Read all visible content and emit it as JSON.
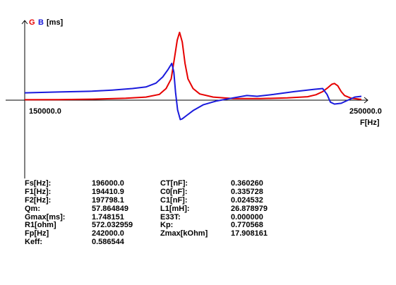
{
  "legend": {
    "g": "G",
    "b": "B",
    "unit": "[ms]"
  },
  "colors": {
    "g": "#e60000",
    "b": "#1a1adc",
    "axis": "#000000"
  },
  "chart_data": {
    "type": "line",
    "xlabel": "F[Hz]",
    "ylabel": "G B [ms]",
    "xlim": [
      150000,
      250000
    ],
    "x_tick_labels": [
      "150000.0",
      "250000.0"
    ],
    "grid": false,
    "series": [
      {
        "name": "G",
        "color": "#e60000",
        "points": [
          [
            150000,
            0.01
          ],
          [
            160000,
            0.015
          ],
          [
            170000,
            0.025
          ],
          [
            180000,
            0.05
          ],
          [
            186000,
            0.08
          ],
          [
            190000,
            0.15
          ],
          [
            192000,
            0.3
          ],
          [
            193500,
            0.55
          ],
          [
            194500,
            1.1
          ],
          [
            195300,
            1.55
          ],
          [
            196000,
            1.748
          ],
          [
            196800,
            1.5
          ],
          [
            197600,
            0.95
          ],
          [
            198500,
            0.55
          ],
          [
            200000,
            0.3
          ],
          [
            202000,
            0.16
          ],
          [
            206000,
            0.08
          ],
          [
            212000,
            0.04
          ],
          [
            220000,
            0.04
          ],
          [
            228000,
            0.06
          ],
          [
            234000,
            0.09
          ],
          [
            236500,
            0.14
          ],
          [
            238500,
            0.22
          ],
          [
            240000,
            0.32
          ],
          [
            241200,
            0.41
          ],
          [
            242000,
            0.43
          ],
          [
            243000,
            0.37
          ],
          [
            244000,
            0.22
          ],
          [
            245000,
            0.12
          ],
          [
            247000,
            0.05
          ],
          [
            250000,
            0.02
          ]
        ]
      },
      {
        "name": "B",
        "color": "#1a1adc",
        "points": [
          [
            150000,
            0.19
          ],
          [
            160000,
            0.21
          ],
          [
            170000,
            0.23
          ],
          [
            176000,
            0.26
          ],
          [
            182000,
            0.3
          ],
          [
            186000,
            0.34
          ],
          [
            189000,
            0.44
          ],
          [
            191000,
            0.6
          ],
          [
            192500,
            0.78
          ],
          [
            193700,
            0.95
          ],
          [
            194300,
            0.72
          ],
          [
            194800,
            0.2
          ],
          [
            195400,
            -0.25
          ],
          [
            196200,
            -0.5
          ],
          [
            196800,
            -0.48
          ],
          [
            198000,
            -0.4
          ],
          [
            200000,
            -0.27
          ],
          [
            203000,
            -0.12
          ],
          [
            207000,
            -0.02
          ],
          [
            212000,
            0.06
          ],
          [
            216000,
            0.12
          ],
          [
            219000,
            0.1
          ],
          [
            224000,
            0.15
          ],
          [
            230000,
            0.22
          ],
          [
            236000,
            0.28
          ],
          [
            238500,
            0.3
          ],
          [
            239800,
            0.15
          ],
          [
            240800,
            -0.05
          ],
          [
            242000,
            -0.1
          ],
          [
            244000,
            -0.08
          ],
          [
            246000,
            0.0
          ],
          [
            248000,
            0.08
          ],
          [
            250000,
            0.1
          ]
        ]
      }
    ]
  },
  "parameters": [
    {
      "label": "Fs[Hz]:",
      "value": "196000.0"
    },
    {
      "label": "F1[Hz]:",
      "value": "194410.9"
    },
    {
      "label": "F2[Hz]:",
      "value": "197798.1"
    },
    {
      "label": "Qm:",
      "value": "57.864849"
    },
    {
      "label": "Gmax[ms]:",
      "value": "1.748151"
    },
    {
      "label": "R1[ohm]",
      "value": "572.032959"
    },
    {
      "label": "Fp[Hz]",
      "value": "242000.0"
    },
    {
      "label": "Keff:",
      "value": "0.586544"
    },
    {
      "label": "CT[nF]:",
      "value": "0.360260"
    },
    {
      "label": "C0[nF]:",
      "value": "0.335728"
    },
    {
      "label": "C1[nF]:",
      "value": "0.024532"
    },
    {
      "label": "L1[mH]:",
      "value": "26.878979"
    },
    {
      "label": "E33T:",
      "value": "0.000000"
    },
    {
      "label": "Kp:",
      "value": "0.770568"
    },
    {
      "label": "Zmax[kOhm]",
      "value": "17.908161"
    }
  ]
}
